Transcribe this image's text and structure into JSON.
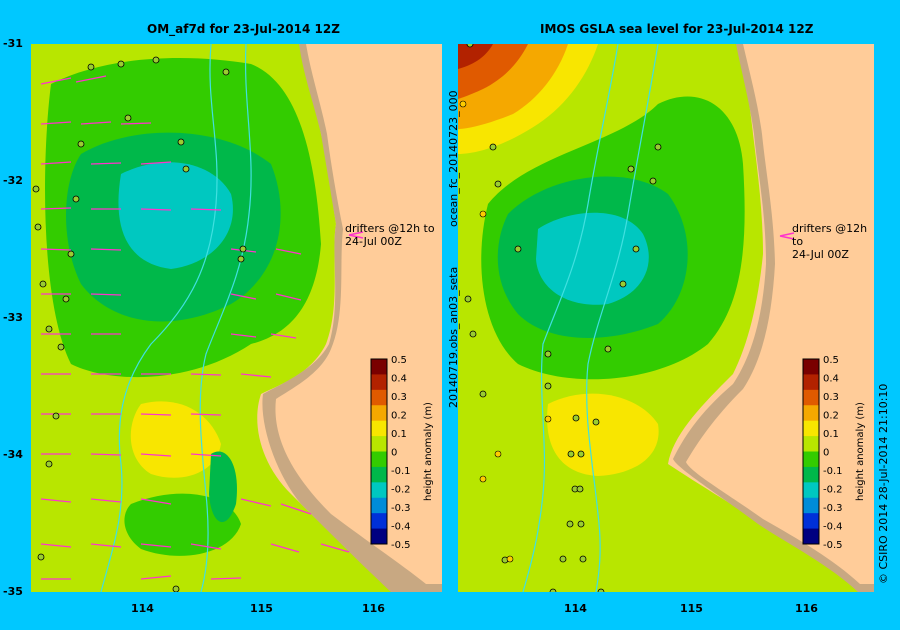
{
  "left_panel": {
    "title": "OM_af7d for 23-Jul-2014 12Z",
    "drifter_note": [
      "drifters @12h to",
      "24-Jul 00Z"
    ]
  },
  "right_panel": {
    "title": "IMOS GSLA sea level  for 23-Jul-2014 12Z",
    "drifter_note": [
      "drifters @12h to",
      "24-Jul 00Z"
    ],
    "side_label_upper": "ocean_fc_20140723_000",
    "side_label_lower": "20140719.obs_an03_seta"
  },
  "lat_ticks": [
    "-31",
    "-32",
    "-33",
    "-34",
    "-35"
  ],
  "lon_ticks": [
    "114",
    "115",
    "116"
  ],
  "colorbar": {
    "label": "height anomaly (m)",
    "ticks": [
      "0.5",
      "0.4",
      "0.3",
      "0.2",
      "0.1",
      "0",
      "-0.1",
      "-0.2",
      "-0.3",
      "-0.4",
      "-0.5"
    ],
    "colors": [
      "#7a0000",
      "#b22200",
      "#e05a00",
      "#f5a800",
      "#f8e600",
      "#b8e600",
      "#33cc00",
      "#00b84a",
      "#00c8c0",
      "#008cd8",
      "#0030d8",
      "#000080"
    ]
  },
  "credit": "© CSIRO 2014   28-Jul-2014 21:10:10",
  "colors": {
    "land": "#ffcc99",
    "shelf": "#c8a882",
    "background": "#00c8ff",
    "arrow": "#ff33cc",
    "bathy": "#40e0e0"
  }
}
